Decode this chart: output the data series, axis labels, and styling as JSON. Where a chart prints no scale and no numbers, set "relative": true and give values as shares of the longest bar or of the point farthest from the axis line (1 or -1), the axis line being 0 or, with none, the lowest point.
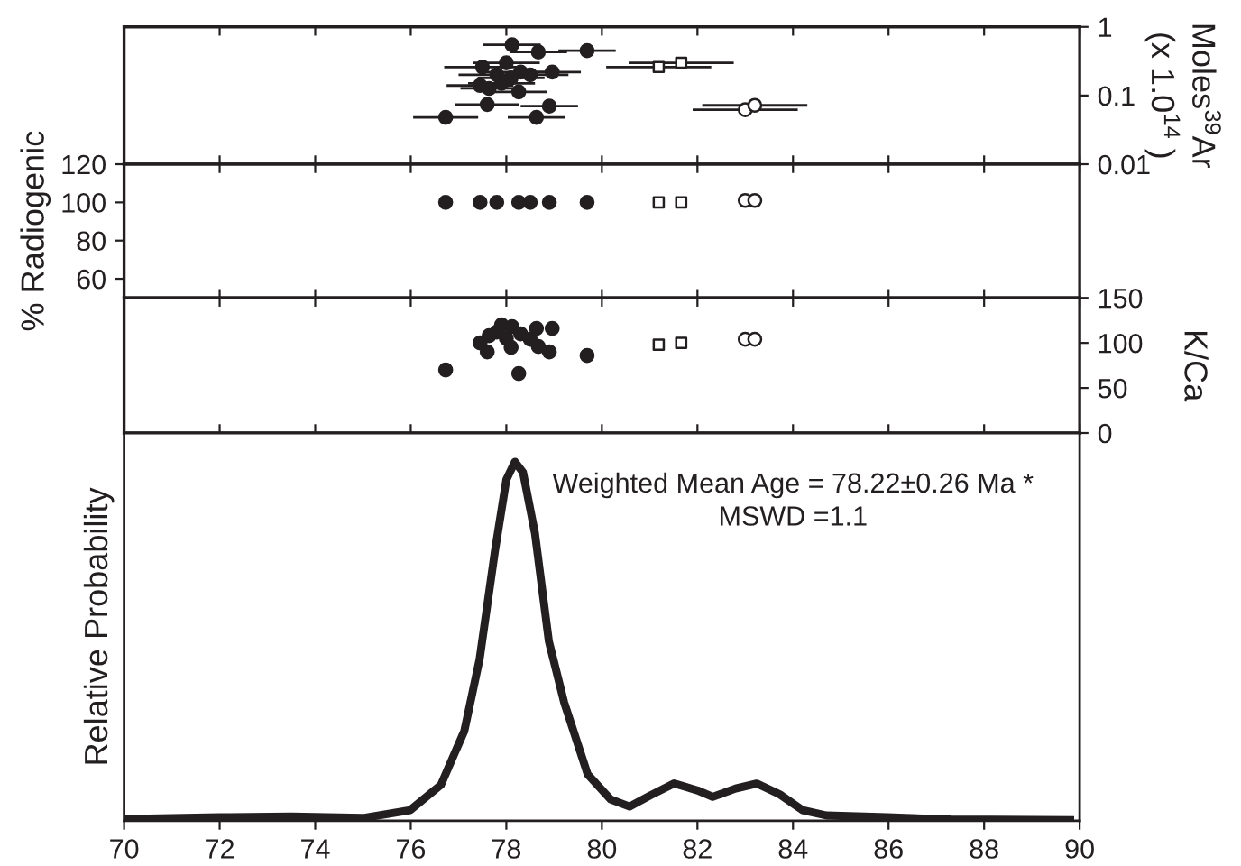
{
  "chart_data": [
    {
      "type": "scatter",
      "ylabel": "Moles$^{39}$Ar\n(x 1.0$^{14}$ )",
      "log": "y",
      "xlim": [
        70,
        90
      ],
      "xticks": [
        70,
        72,
        74,
        76,
        78,
        80,
        82,
        84,
        86,
        88,
        90
      ],
      "ylim": [
        0.01,
        1
      ],
      "yticks": [
        0.01,
        0.1,
        1
      ],
      "tick_labels": "y",
      "legend": false,
      "series": [
        {
          "color": "#231f20",
          "marker": "circle",
          "x": [
            76.73,
            77.6,
            77.64,
            78.12,
            78.67,
            79.69,
            78.9,
            78.63,
            78.26,
            77.5,
            77.8,
            78.0,
            78.1,
            78.3,
            78.5,
            78.96,
            77.9,
            77.45
          ],
          "values": [
            0.048,
            0.074,
            0.127,
            0.55,
            0.43,
            0.45,
            0.07,
            0.048,
            0.113,
            0.26,
            0.2,
            0.3,
            0.18,
            0.22,
            0.2,
            0.22,
            0.15,
            0.14
          ],
          "xerrors": [
            0.68,
            0.67,
            0.6,
            0.6,
            0.6,
            0.6,
            0.6,
            0.6,
            0.6,
            0.8,
            0.8,
            0.7,
            0.7,
            0.8,
            0.8,
            0.6,
            0.7,
            0.7
          ]
        },
        {
          "color": "#ffffff",
          "marker": "square",
          "x": [
            81.19,
            81.66
          ],
          "values": [
            0.26,
            0.3
          ],
          "xerrors": [
            1.1,
            1.1
          ]
        },
        {
          "color": "#ffffff",
          "marker": "circle",
          "x": [
            83.0,
            83.2
          ],
          "values": [
            0.062,
            0.072
          ],
          "xerrors": [
            1.1,
            1.1
          ]
        }
      ]
    },
    {
      "type": "scatter",
      "ylabel": "% Radiogenic",
      "xlim": [
        70,
        90
      ],
      "xticks": [
        70,
        72,
        74,
        76,
        78,
        80,
        82,
        84,
        86,
        88,
        90
      ],
      "ylim": [
        50,
        120
      ],
      "yticks": [
        60,
        80,
        100,
        120
      ],
      "tick_labels": "y",
      "legend": false,
      "series": [
        {
          "color": "#231f20",
          "marker": "circle",
          "x": [
            76.73,
            77.45,
            77.8,
            78.26,
            78.5,
            78.9,
            79.69
          ],
          "values": [
            100,
            100,
            100,
            100,
            100,
            100,
            100
          ]
        },
        {
          "color": "#ffffff",
          "marker": "square",
          "x": [
            81.19,
            81.66
          ],
          "values": [
            100,
            100
          ]
        },
        {
          "color": "#ffffff",
          "marker": "circle",
          "x": [
            83.0,
            83.2
          ],
          "values": [
            101,
            101
          ]
        }
      ]
    },
    {
      "type": "scatter",
      "ylabel": "K/Ca",
      "xlim": [
        70,
        90
      ],
      "xticks": [
        70,
        72,
        74,
        76,
        78,
        80,
        82,
        84,
        86,
        88,
        90
      ],
      "ylim": [
        0,
        150
      ],
      "yticks": [
        0,
        50,
        100,
        150
      ],
      "tick_labels": "y",
      "legend": false,
      "series": [
        {
          "color": "#231f20",
          "marker": "circle",
          "x": [
            76.73,
            77.6,
            77.64,
            78.12,
            78.67,
            79.69,
            78.9,
            78.63,
            78.26,
            77.8,
            78.0,
            78.1,
            78.3,
            78.5,
            78.96,
            77.9,
            77.45
          ],
          "values": [
            70,
            90,
            108,
            118,
            96,
            86,
            90,
            116,
            66,
            112,
            105,
            95,
            110,
            104,
            116,
            120,
            100
          ]
        },
        {
          "color": "#ffffff",
          "marker": "square",
          "x": [
            81.19,
            81.66
          ],
          "values": [
            98,
            100
          ]
        },
        {
          "color": "#ffffff",
          "marker": "circle",
          "x": [
            83.0,
            83.2
          ],
          "values": [
            104,
            104
          ]
        }
      ]
    },
    {
      "type": "line",
      "ylabel": "Relative Probability",
      "relative": true,
      "xlim": [
        70,
        90
      ],
      "xticks": [
        70,
        72,
        74,
        76,
        78,
        80,
        82,
        84,
        86,
        88,
        90
      ],
      "tick_labels": "x",
      "legend": false,
      "marker": "none",
      "line_style": "solid",
      "annotations": [
        "Weighted Mean Age = 78.22±0.26 Ma *",
        "MSWD =1.1"
      ],
      "series": [
        {
          "color": "#231f20",
          "x": [
            70,
            72,
            73.5,
            75,
            75.99,
            76.63,
            77.12,
            77.44,
            77.76,
            78.0,
            78.18,
            78.35,
            78.6,
            78.89,
            79.21,
            79.7,
            80.18,
            80.58,
            81.0,
            81.51,
            82.0,
            82.32,
            82.8,
            83.24,
            83.72,
            84.2,
            84.7,
            85.97,
            87.3,
            89.8
          ],
          "values": [
            0.005,
            0.01,
            0.012,
            0.008,
            0.03,
            0.1,
            0.25,
            0.45,
            0.75,
            0.95,
            1.0,
            0.97,
            0.8,
            0.5,
            0.33,
            0.13,
            0.06,
            0.04,
            0.07,
            0.104,
            0.085,
            0.067,
            0.09,
            0.104,
            0.074,
            0.03,
            0.015,
            0.01,
            0.004,
            0.002
          ]
        }
      ]
    }
  ]
}
